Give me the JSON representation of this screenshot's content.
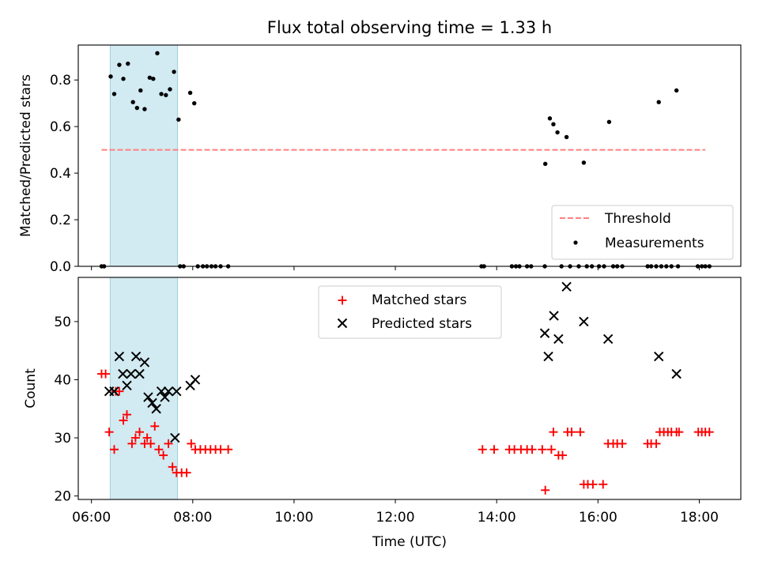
{
  "chart_data": [
    {
      "type": "scatter",
      "title": "Flux total observing time = 1.33 h",
      "xlabel": "",
      "ylabel": "Matched/Predicted stars",
      "xlim_hours": [
        5.74,
        18.82
      ],
      "ylim": [
        0,
        0.95
      ],
      "yticks": [
        0.0,
        0.2,
        0.4,
        0.6,
        0.8
      ],
      "ytick_labels": [
        "0.0",
        "0.2",
        "0.4",
        "0.6",
        "0.8"
      ],
      "xticks_hours": [
        6,
        8,
        10,
        12,
        14,
        16,
        18
      ],
      "highlight_span_hours": [
        6.37,
        7.7
      ],
      "highlight_color": "#add8e6",
      "threshold": {
        "name": "Threshold",
        "value": 0.5,
        "x_range_hours": [
          6.2,
          18.12
        ],
        "color": "#ff8080"
      },
      "legend": {
        "position": "lower right",
        "entries": [
          "Threshold",
          "Measurements"
        ]
      },
      "series": [
        {
          "name": "Measurements",
          "color": "#000000",
          "marker": "dot",
          "points": [
            [
              6.2,
              0
            ],
            [
              6.25,
              0
            ],
            [
              6.38,
              0.815
            ],
            [
              6.45,
              0.74
            ],
            [
              6.55,
              0.865
            ],
            [
              6.63,
              0.805
            ],
            [
              6.72,
              0.87
            ],
            [
              6.82,
              0.705
            ],
            [
              6.9,
              0.68
            ],
            [
              6.97,
              0.755
            ],
            [
              7.05,
              0.675
            ],
            [
              7.15,
              0.81
            ],
            [
              7.22,
              0.805
            ],
            [
              7.3,
              0.915
            ],
            [
              7.38,
              0.74
            ],
            [
              7.47,
              0.735
            ],
            [
              7.55,
              0.76
            ],
            [
              7.63,
              0.835
            ],
            [
              7.72,
              0.63
            ],
            [
              7.75,
              0
            ],
            [
              7.82,
              0
            ],
            [
              7.95,
              0.745
            ],
            [
              8.03,
              0.7
            ],
            [
              8.1,
              0
            ],
            [
              8.2,
              0
            ],
            [
              8.28,
              0
            ],
            [
              8.37,
              0
            ],
            [
              8.45,
              0
            ],
            [
              8.55,
              0
            ],
            [
              8.7,
              0
            ],
            [
              13.7,
              0
            ],
            [
              13.75,
              0
            ],
            [
              14.3,
              0
            ],
            [
              14.38,
              0
            ],
            [
              14.45,
              0
            ],
            [
              14.6,
              0
            ],
            [
              14.68,
              0
            ],
            [
              14.95,
              0
            ],
            [
              14.96,
              0.44
            ],
            [
              15.05,
              0.635
            ],
            [
              15.12,
              0.61
            ],
            [
              15.2,
              0.575
            ],
            [
              15.28,
              0
            ],
            [
              15.38,
              0.555
            ],
            [
              15.45,
              0
            ],
            [
              15.62,
              0
            ],
            [
              15.72,
              0.445
            ],
            [
              15.78,
              0
            ],
            [
              15.88,
              0
            ],
            [
              16.02,
              0
            ],
            [
              16.12,
              0
            ],
            [
              16.22,
              0.62
            ],
            [
              16.3,
              0
            ],
            [
              16.38,
              0
            ],
            [
              16.48,
              0
            ],
            [
              16.98,
              0
            ],
            [
              17.05,
              0
            ],
            [
              17.15,
              0
            ],
            [
              17.2,
              0.705
            ],
            [
              17.25,
              0
            ],
            [
              17.35,
              0
            ],
            [
              17.45,
              0
            ],
            [
              17.55,
              0.755
            ],
            [
              17.58,
              0
            ],
            [
              17.97,
              0
            ],
            [
              18.05,
              0
            ],
            [
              18.12,
              0
            ],
            [
              18.2,
              0
            ]
          ]
        }
      ]
    },
    {
      "type": "scatter",
      "title": "",
      "xlabel": "Time (UTC)",
      "ylabel": "Count",
      "xlim_hours": [
        5.74,
        18.82
      ],
      "ylim": [
        19.4,
        57.6
      ],
      "yticks": [
        20,
        30,
        40,
        50
      ],
      "ytick_labels": [
        "20",
        "30",
        "40",
        "50"
      ],
      "xticks_hours": [
        6,
        8,
        10,
        12,
        14,
        16,
        18
      ],
      "xtick_labels": [
        "06:00",
        "08:00",
        "10:00",
        "12:00",
        "14:00",
        "16:00",
        "18:00"
      ],
      "highlight_span_hours": [
        6.37,
        7.7
      ],
      "highlight_color": "#add8e6",
      "legend": {
        "position": "upper center",
        "entries": [
          "Matched stars",
          "Predicted stars"
        ]
      },
      "series": [
        {
          "name": "Matched stars",
          "color": "#ff0000",
          "marker": "plus",
          "points": [
            [
              6.2,
              41
            ],
            [
              6.28,
              41
            ],
            [
              6.35,
              31
            ],
            [
              6.45,
              28
            ],
            [
              6.48,
              38
            ],
            [
              6.55,
              38
            ],
            [
              6.63,
              33
            ],
            [
              6.7,
              34
            ],
            [
              6.8,
              29
            ],
            [
              6.87,
              30
            ],
            [
              6.95,
              31
            ],
            [
              7.05,
              29
            ],
            [
              7.1,
              30
            ],
            [
              7.17,
              29
            ],
            [
              7.25,
              32
            ],
            [
              7.33,
              28
            ],
            [
              7.42,
              27
            ],
            [
              7.52,
              29
            ],
            [
              7.6,
              25
            ],
            [
              7.68,
              24
            ],
            [
              7.78,
              24
            ],
            [
              7.88,
              24
            ],
            [
              7.97,
              29
            ],
            [
              8.05,
              28
            ],
            [
              8.15,
              28
            ],
            [
              8.25,
              28
            ],
            [
              8.35,
              28
            ],
            [
              8.45,
              28
            ],
            [
              8.55,
              28
            ],
            [
              8.7,
              28
            ],
            [
              13.72,
              28
            ],
            [
              13.95,
              28
            ],
            [
              14.25,
              28
            ],
            [
              14.35,
              28
            ],
            [
              14.48,
              28
            ],
            [
              14.6,
              28
            ],
            [
              14.7,
              28
            ],
            [
              14.9,
              28
            ],
            [
              14.96,
              21
            ],
            [
              15.08,
              28
            ],
            [
              15.12,
              31
            ],
            [
              15.22,
              27
            ],
            [
              15.3,
              27
            ],
            [
              15.4,
              31
            ],
            [
              15.48,
              31
            ],
            [
              15.65,
              31
            ],
            [
              15.72,
              22
            ],
            [
              15.8,
              22
            ],
            [
              15.9,
              22
            ],
            [
              16.1,
              22
            ],
            [
              16.2,
              29
            ],
            [
              16.3,
              29
            ],
            [
              16.38,
              29
            ],
            [
              16.48,
              29
            ],
            [
              16.98,
              29
            ],
            [
              17.05,
              29
            ],
            [
              17.15,
              29
            ],
            [
              17.22,
              31
            ],
            [
              17.3,
              31
            ],
            [
              17.38,
              31
            ],
            [
              17.45,
              31
            ],
            [
              17.55,
              31
            ],
            [
              17.6,
              31
            ],
            [
              17.98,
              31
            ],
            [
              18.05,
              31
            ],
            [
              18.12,
              31
            ],
            [
              18.2,
              31
            ]
          ]
        },
        {
          "name": "Predicted stars",
          "color": "#000000",
          "marker": "x",
          "points": [
            [
              6.35,
              38
            ],
            [
              6.45,
              38
            ],
            [
              6.55,
              44
            ],
            [
              6.62,
              41
            ],
            [
              6.7,
              39
            ],
            [
              6.78,
              41
            ],
            [
              6.88,
              44
            ],
            [
              6.95,
              41
            ],
            [
              7.05,
              43
            ],
            [
              7.12,
              37
            ],
            [
              7.2,
              36
            ],
            [
              7.28,
              35
            ],
            [
              7.38,
              38
            ],
            [
              7.45,
              37
            ],
            [
              7.52,
              38
            ],
            [
              7.65,
              30
            ],
            [
              7.68,
              38
            ],
            [
              7.95,
              39
            ],
            [
              8.05,
              40
            ],
            [
              14.95,
              48
            ],
            [
              15.02,
              44
            ],
            [
              15.13,
              51
            ],
            [
              15.22,
              47
            ],
            [
              15.38,
              56
            ],
            [
              15.72,
              50
            ],
            [
              16.2,
              47
            ],
            [
              17.2,
              44
            ],
            [
              17.55,
              41
            ]
          ]
        }
      ]
    }
  ]
}
